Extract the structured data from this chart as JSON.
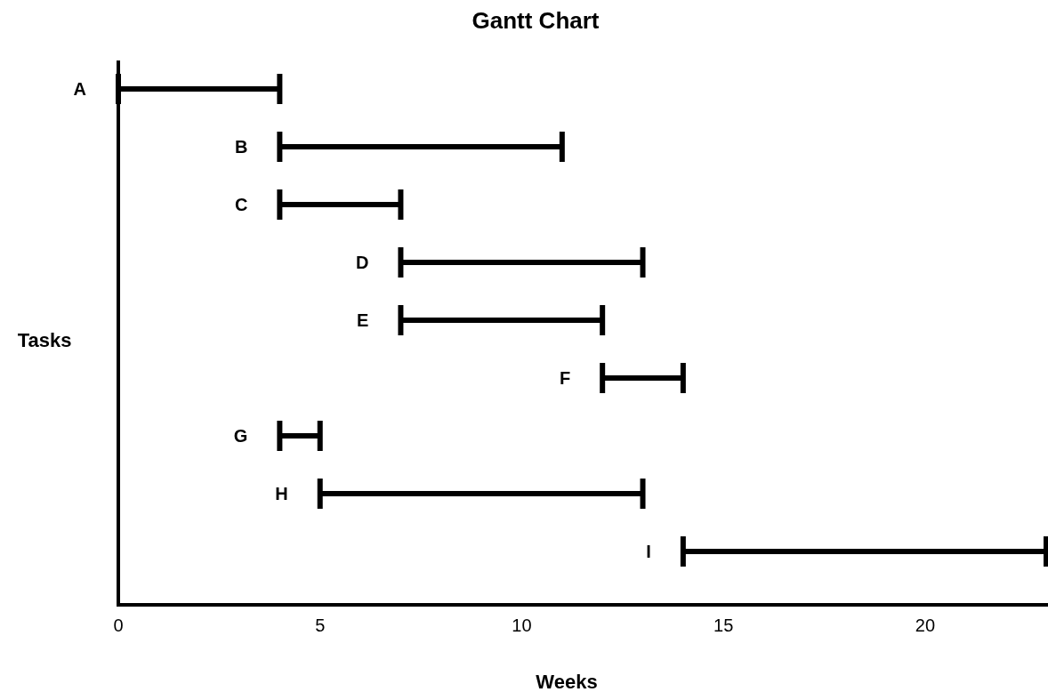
{
  "chart_data": {
    "type": "bar",
    "orientation": "horizontal",
    "title": "Gantt Chart",
    "xlabel": "Weeks",
    "ylabel": "Tasks",
    "categories": [
      "A",
      "B",
      "C",
      "D",
      "E",
      "F",
      "G",
      "H",
      "I"
    ],
    "base": [
      0,
      4,
      4,
      7,
      7,
      12,
      4,
      5,
      14
    ],
    "values": [
      4,
      7,
      3,
      6,
      5,
      2,
      1,
      8,
      9
    ],
    "color": "#000000",
    "xlim": [
      0,
      23
    ],
    "xticks": [
      0,
      5,
      10,
      15,
      20
    ],
    "grid": false
  }
}
